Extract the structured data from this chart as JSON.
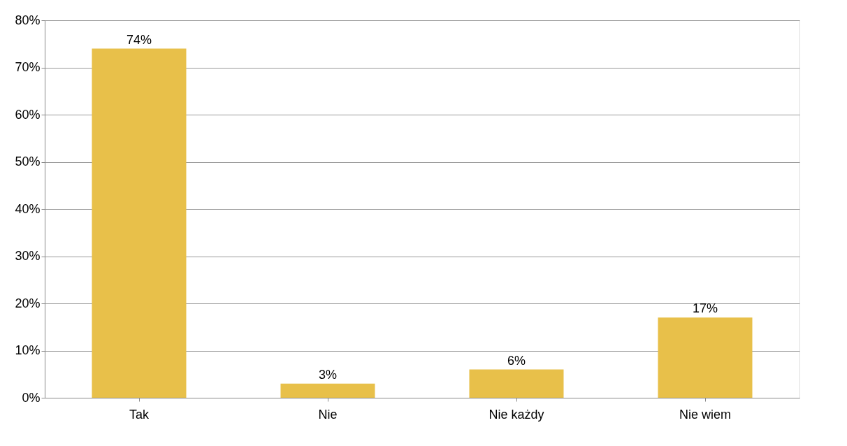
{
  "chart_data": {
    "type": "bar",
    "categories": [
      "Tak",
      "Nie",
      "Nie każdy",
      "Nie wiem"
    ],
    "values": [
      74,
      3,
      6,
      17
    ],
    "value_labels": [
      "74%",
      "3%",
      "6%",
      "17%"
    ],
    "color": "#e8c04a",
    "ylim": [
      0,
      80
    ],
    "yticks": [
      {
        "value": 0,
        "label": "0%"
      },
      {
        "value": 10,
        "label": "10%"
      },
      {
        "value": 20,
        "label": "20%"
      },
      {
        "value": 30,
        "label": "30%"
      },
      {
        "value": 40,
        "label": "40%"
      },
      {
        "value": 50,
        "label": "50%"
      },
      {
        "value": 60,
        "label": "60%"
      },
      {
        "value": 70,
        "label": "70%"
      },
      {
        "value": 80,
        "label": "80%"
      }
    ],
    "grid": "y"
  }
}
